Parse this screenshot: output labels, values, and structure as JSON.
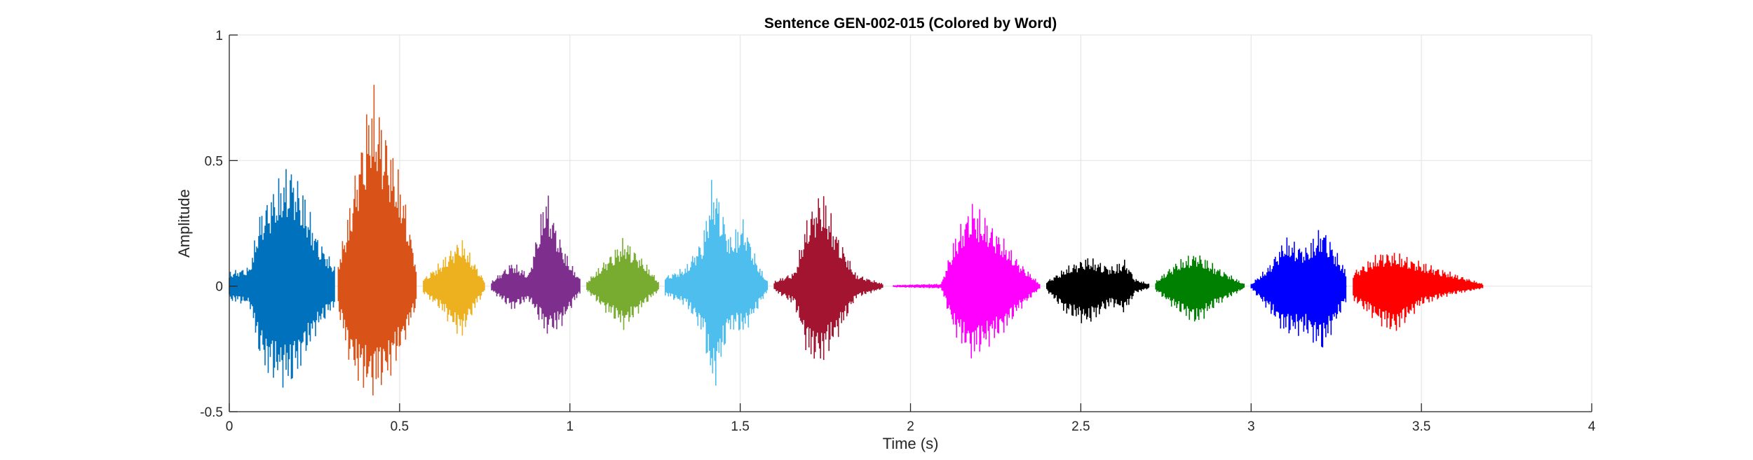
{
  "chart_data": {
    "type": "line",
    "title": "Sentence GEN-002-015 (Colored by Word)",
    "xlabel": "Time (s)",
    "ylabel": "Amplitude",
    "xlim": [
      0,
      4
    ],
    "ylim": [
      -0.5,
      1
    ],
    "xticks": [
      0,
      0.5,
      1,
      1.5,
      2,
      2.5,
      3,
      3.5,
      4
    ],
    "xtick_labels": [
      "0",
      "0.5",
      "1",
      "1.5",
      "2",
      "2.5",
      "3",
      "3.5",
      "4"
    ],
    "yticks": [
      -0.5,
      0,
      0.5,
      1
    ],
    "ytick_labels": [
      "-0.5",
      "0",
      "0.5",
      "1"
    ],
    "grid": true,
    "legend": "none",
    "series": [
      {
        "color": "#0072BD",
        "start": 0.0,
        "end": 0.31,
        "envelope": [
          [
            0.0,
            0.06,
            -0.06
          ],
          [
            0.06,
            0.08,
            -0.08
          ],
          [
            0.09,
            0.3,
            -0.3
          ],
          [
            0.12,
            0.38,
            -0.38
          ],
          [
            0.18,
            0.51,
            -0.42
          ],
          [
            0.22,
            0.38,
            -0.3
          ],
          [
            0.26,
            0.2,
            -0.18
          ],
          [
            0.31,
            0.08,
            -0.08
          ]
        ]
      },
      {
        "color": "#D95319",
        "start": 0.32,
        "end": 0.55,
        "envelope": [
          [
            0.32,
            0.1,
            -0.1
          ],
          [
            0.35,
            0.3,
            -0.3
          ],
          [
            0.38,
            0.55,
            -0.4
          ],
          [
            0.42,
            0.83,
            -0.45
          ],
          [
            0.47,
            0.6,
            -0.38
          ],
          [
            0.51,
            0.4,
            -0.25
          ],
          [
            0.55,
            0.08,
            -0.08
          ]
        ]
      },
      {
        "color": "#EDB120",
        "start": 0.57,
        "end": 0.75,
        "envelope": [
          [
            0.57,
            0.03,
            -0.03
          ],
          [
            0.62,
            0.1,
            -0.1
          ],
          [
            0.68,
            0.2,
            -0.22
          ],
          [
            0.72,
            0.1,
            -0.1
          ],
          [
            0.75,
            0.02,
            -0.02
          ]
        ]
      },
      {
        "color": "#7E2F8E",
        "start": 0.77,
        "end": 1.03,
        "envelope": [
          [
            0.77,
            0.02,
            -0.02
          ],
          [
            0.83,
            0.1,
            -0.1
          ],
          [
            0.88,
            0.05,
            -0.06
          ],
          [
            0.93,
            0.4,
            -0.2
          ],
          [
            0.97,
            0.2,
            -0.18
          ],
          [
            1.0,
            0.1,
            -0.1
          ],
          [
            1.03,
            0.03,
            -0.03
          ]
        ]
      },
      {
        "color": "#77AC30",
        "start": 1.05,
        "end": 1.26,
        "envelope": [
          [
            1.05,
            0.02,
            -0.02
          ],
          [
            1.1,
            0.1,
            -0.1
          ],
          [
            1.16,
            0.2,
            -0.18
          ],
          [
            1.22,
            0.1,
            -0.08
          ],
          [
            1.26,
            0.02,
            -0.02
          ]
        ]
      },
      {
        "color": "#4DBEEE",
        "start": 1.28,
        "end": 1.58,
        "envelope": [
          [
            1.28,
            0.04,
            -0.04
          ],
          [
            1.34,
            0.08,
            -0.08
          ],
          [
            1.39,
            0.2,
            -0.2
          ],
          [
            1.42,
            0.46,
            -0.44
          ],
          [
            1.47,
            0.2,
            -0.18
          ],
          [
            1.51,
            0.28,
            -0.2
          ],
          [
            1.55,
            0.1,
            -0.1
          ],
          [
            1.58,
            0.02,
            -0.02
          ]
        ]
      },
      {
        "color": "#A2142F",
        "start": 1.6,
        "end": 1.92,
        "envelope": [
          [
            1.6,
            0.02,
            -0.02
          ],
          [
            1.66,
            0.06,
            -0.08
          ],
          [
            1.7,
            0.3,
            -0.3
          ],
          [
            1.74,
            0.4,
            -0.32
          ],
          [
            1.79,
            0.2,
            -0.2
          ],
          [
            1.84,
            0.05,
            -0.05
          ],
          [
            1.92,
            0.01,
            -0.01
          ]
        ]
      },
      {
        "color": "#FF00FF",
        "start": 1.95,
        "end": 2.38,
        "envelope": [
          [
            1.95,
            0.005,
            -0.005
          ],
          [
            2.09,
            0.01,
            -0.01
          ],
          [
            2.13,
            0.2,
            -0.2
          ],
          [
            2.18,
            0.35,
            -0.3
          ],
          [
            2.27,
            0.2,
            -0.2
          ],
          [
            2.32,
            0.1,
            -0.1
          ],
          [
            2.38,
            0.01,
            -0.01
          ]
        ]
      },
      {
        "color": "#000000",
        "start": 2.4,
        "end": 2.7,
        "envelope": [
          [
            2.4,
            0.02,
            -0.02
          ],
          [
            2.46,
            0.08,
            -0.12
          ],
          [
            2.52,
            0.12,
            -0.16
          ],
          [
            2.59,
            0.08,
            -0.08
          ],
          [
            2.63,
            0.11,
            -0.11
          ],
          [
            2.66,
            0.03,
            -0.03
          ],
          [
            2.7,
            0.01,
            -0.01
          ]
        ]
      },
      {
        "color": "#008000",
        "start": 2.72,
        "end": 2.98,
        "envelope": [
          [
            2.72,
            0.02,
            -0.02
          ],
          [
            2.78,
            0.1,
            -0.1
          ],
          [
            2.84,
            0.14,
            -0.16
          ],
          [
            2.9,
            0.08,
            -0.08
          ],
          [
            2.98,
            0.01,
            -0.01
          ]
        ]
      },
      {
        "color": "#0000FF",
        "start": 3.0,
        "end": 3.28,
        "envelope": [
          [
            3.0,
            0.01,
            -0.01
          ],
          [
            3.05,
            0.08,
            -0.1
          ],
          [
            3.1,
            0.2,
            -0.2
          ],
          [
            3.16,
            0.16,
            -0.2
          ],
          [
            3.21,
            0.25,
            -0.27
          ],
          [
            3.28,
            0.06,
            -0.06
          ]
        ]
      },
      {
        "color": "#FF0000",
        "start": 3.3,
        "end": 3.68,
        "envelope": [
          [
            3.3,
            0.06,
            -0.06
          ],
          [
            3.38,
            0.14,
            -0.16
          ],
          [
            3.42,
            0.14,
            -0.2
          ],
          [
            3.5,
            0.1,
            -0.08
          ],
          [
            3.58,
            0.06,
            -0.04
          ],
          [
            3.68,
            0.01,
            -0.01
          ]
        ]
      }
    ]
  }
}
